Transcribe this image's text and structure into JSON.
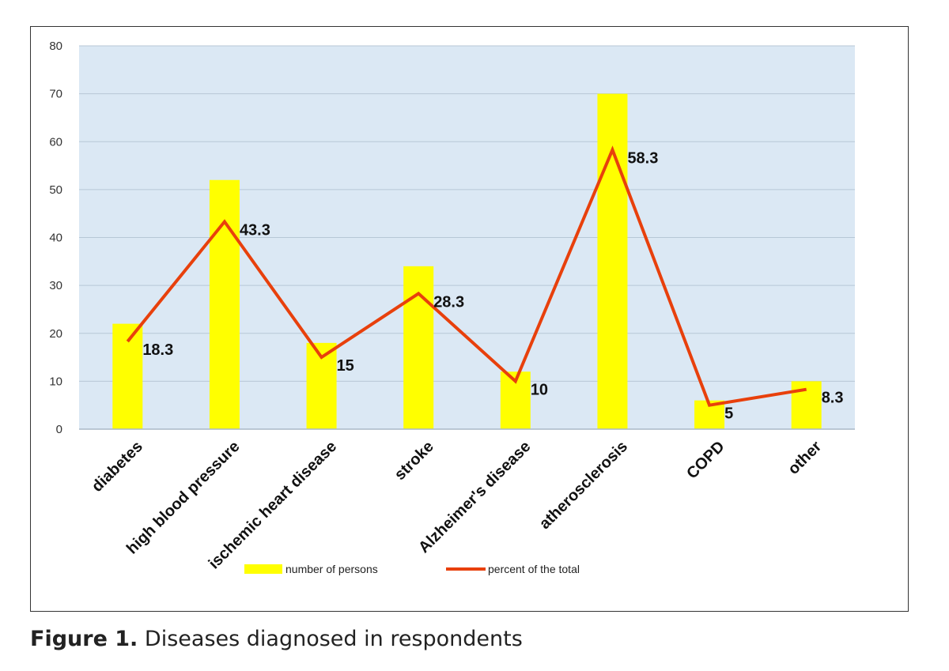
{
  "caption": {
    "label": "Figure 1.",
    "text": "Diseases diagnosed in respondents"
  },
  "colors": {
    "plot_background": "#dbe8f4",
    "gridline": "#b7c7d6",
    "bar": "#ffff00",
    "line": "#e8400c"
  },
  "chart_data": {
    "type": "bar",
    "categories": [
      "diabetes",
      "high blood pressure",
      "ischemic heart disease",
      "stroke",
      "Alzheimer's disease",
      "atherosclerosis",
      "COPD",
      "other"
    ],
    "series": [
      {
        "name": "number of persons",
        "type": "bar",
        "values": [
          22,
          52,
          18,
          34,
          12,
          70,
          6,
          10
        ]
      },
      {
        "name": "percent of the total",
        "type": "line",
        "values": [
          18.3,
          43.3,
          15,
          28.3,
          10,
          58.3,
          5,
          8.3
        ]
      }
    ],
    "data_labels": [
      "18.3",
      "43.3",
      "15",
      "28.3",
      "10",
      "58.3",
      "5",
      "8.3"
    ],
    "ylim": [
      0,
      80
    ],
    "yticks": [
      0,
      10,
      20,
      30,
      40,
      50,
      60,
      70,
      80
    ],
    "grid": true,
    "legend": "bottom",
    "title": "",
    "xlabel": "",
    "ylabel": ""
  }
}
